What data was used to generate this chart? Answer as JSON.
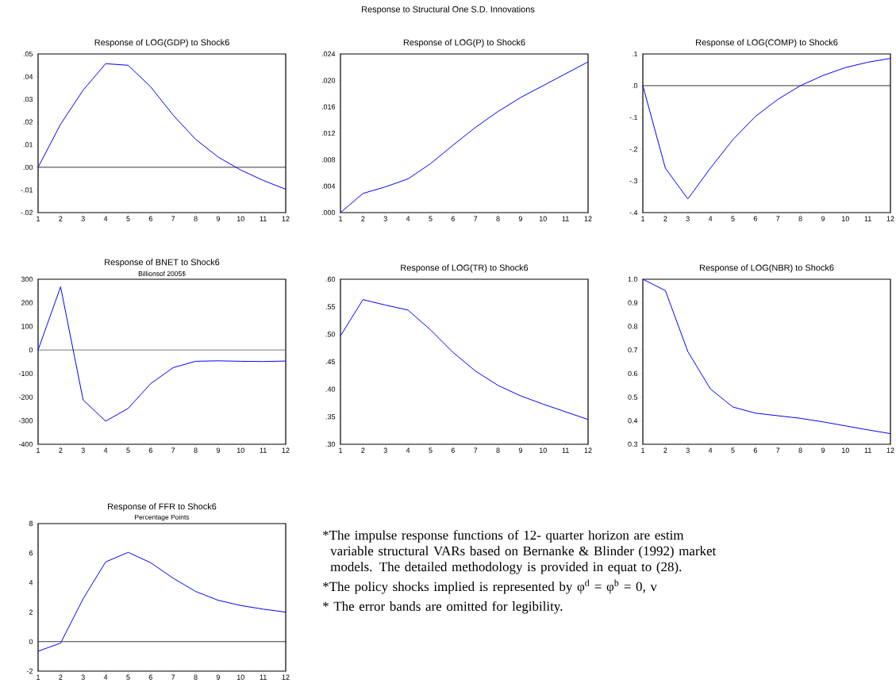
{
  "chart_data": [
    {
      "type": "line",
      "title": "Response of LOG(GDP) to Shock6",
      "x": [
        1,
        2,
        3,
        4,
        5,
        6,
        7,
        8,
        9,
        10,
        11,
        12
      ],
      "xlim": [
        1,
        12
      ],
      "xticks": [
        1,
        2,
        3,
        4,
        5,
        6,
        7,
        8,
        9,
        10,
        11,
        12
      ],
      "ylim": [
        -0.02,
        0.05
      ],
      "yticks": [
        {
          "value": -0.02,
          "label": "-.02"
        },
        {
          "value": -0.01,
          "label": "-.01"
        },
        {
          "value": 0,
          "label": ".00"
        },
        {
          "value": 0.01,
          "label": ".01"
        },
        {
          "value": 0.02,
          "label": ".02"
        },
        {
          "value": 0.03,
          "label": ".03"
        },
        {
          "value": 0.04,
          "label": ".04"
        },
        {
          "value": 0.05,
          "label": ".05"
        }
      ],
      "series": [
        {
          "color": "#0000ff",
          "values": [
            0,
            0.019,
            0.034,
            0.0457,
            0.045,
            0.0355,
            0.023,
            0.0123,
            0.0045,
            -0.0012,
            -0.0058,
            -0.0097
          ]
        }
      ],
      "ref_lines": [
        {
          "axis": "y",
          "value": 0,
          "color": "#000000"
        }
      ]
    },
    {
      "type": "line",
      "title": "Response of LOG(P) to Shock6",
      "x": [
        1,
        2,
        3,
        4,
        5,
        6,
        7,
        8,
        9,
        10,
        11,
        12
      ],
      "xlim": [
        1,
        12
      ],
      "xticks": [
        1,
        2,
        3,
        4,
        5,
        6,
        7,
        8,
        9,
        10,
        11,
        12
      ],
      "ylim": [
        0,
        0.024
      ],
      "yticks": [
        {
          "value": 0,
          "label": ".000"
        },
        {
          "value": 0.004,
          "label": ".004"
        },
        {
          "value": 0.008,
          "label": ".008"
        },
        {
          "value": 0.012,
          "label": ".012"
        },
        {
          "value": 0.016,
          "label": ".016"
        },
        {
          "value": 0.02,
          "label": ".020"
        },
        {
          "value": 0.024,
          "label": ".024"
        }
      ],
      "series": [
        {
          "color": "#0000ff",
          "values": [
            0,
            0.0029,
            0.0039,
            0.0051,
            0.0074,
            0.0102,
            0.0129,
            0.0153,
            0.0174,
            0.0192,
            0.021,
            0.0228
          ]
        }
      ]
    },
    {
      "type": "line",
      "title": "Response of LOG(COMP) to Shock6",
      "x": [
        1,
        2,
        3,
        4,
        5,
        6,
        7,
        8,
        9,
        10,
        11,
        12
      ],
      "xlim": [
        1,
        12
      ],
      "xticks": [
        1,
        2,
        3,
        4,
        5,
        6,
        7,
        8,
        9,
        10,
        11,
        12
      ],
      "ylim": [
        -0.4,
        0.1
      ],
      "yticks": [
        {
          "value": -0.4,
          "label": "-.4"
        },
        {
          "value": -0.3,
          "label": "-.3"
        },
        {
          "value": -0.2,
          "label": "-.2"
        },
        {
          "value": -0.1,
          "label": "-.1"
        },
        {
          "value": 0,
          "label": ".0"
        },
        {
          "value": 0.1,
          "label": ".1"
        }
      ],
      "series": [
        {
          "color": "#0000ff",
          "values": [
            0,
            -0.26,
            -0.357,
            -0.26,
            -0.17,
            -0.097,
            -0.043,
            0,
            0.032,
            0.057,
            0.074,
            0.086
          ]
        }
      ],
      "ref_lines": [
        {
          "axis": "y",
          "value": 0,
          "color": "#000000"
        }
      ]
    },
    {
      "type": "line",
      "title": "Response of BNET to Shock6",
      "subtitle": "Billionsof 2005$",
      "x": [
        1,
        2,
        3,
        4,
        5,
        6,
        7,
        8,
        9,
        10,
        11,
        12
      ],
      "xlim": [
        1,
        12
      ],
      "xticks": [
        1,
        2,
        3,
        4,
        5,
        6,
        7,
        8,
        9,
        10,
        11,
        12
      ],
      "ylim": [
        -400,
        300
      ],
      "yticks": [
        -400,
        -300,
        -200,
        -100,
        0,
        100,
        200,
        300
      ],
      "series": [
        {
          "color": "#0000ff",
          "values": [
            0,
            268,
            -212,
            -302,
            -248,
            -143,
            -75,
            -48,
            -46,
            -48,
            -49,
            -47
          ]
        }
      ],
      "ref_lines": [
        {
          "axis": "y",
          "value": 0,
          "color": "#555555"
        }
      ]
    },
    {
      "type": "line",
      "title": "Response of LOG(TR) to Shock6",
      "x": [
        1,
        2,
        3,
        4,
        5,
        6,
        7,
        8,
        9,
        10,
        11,
        12
      ],
      "xlim": [
        1,
        12
      ],
      "xticks": [
        1,
        2,
        3,
        4,
        5,
        6,
        7,
        8,
        9,
        10,
        11,
        12
      ],
      "ylim": [
        0.3,
        0.6
      ],
      "yticks": [
        {
          "value": 0.3,
          "label": ".30"
        },
        {
          "value": 0.35,
          "label": ".35"
        },
        {
          "value": 0.4,
          "label": ".40"
        },
        {
          "value": 0.45,
          "label": ".45"
        },
        {
          "value": 0.5,
          "label": ".50"
        },
        {
          "value": 0.55,
          "label": ".55"
        },
        {
          "value": 0.6,
          "label": ".60"
        }
      ],
      "series": [
        {
          "color": "#0000ff",
          "values": [
            0.497,
            0.563,
            0.553,
            0.544,
            0.508,
            0.467,
            0.433,
            0.407,
            0.388,
            0.373,
            0.359,
            0.345
          ]
        }
      ]
    },
    {
      "type": "line",
      "title": "Response of LOG(NBR) to Shock6",
      "x": [
        1,
        2,
        3,
        4,
        5,
        6,
        7,
        8,
        9,
        10,
        11,
        12
      ],
      "xlim": [
        1,
        12
      ],
      "xticks": [
        1,
        2,
        3,
        4,
        5,
        6,
        7,
        8,
        9,
        10,
        11,
        12
      ],
      "ylim": [
        0.3,
        1.0
      ],
      "yticks": [
        {
          "value": 0.3,
          "label": "0.3"
        },
        {
          "value": 0.4,
          "label": "0.4"
        },
        {
          "value": 0.5,
          "label": "0.5"
        },
        {
          "value": 0.6,
          "label": "0.6"
        },
        {
          "value": 0.7,
          "label": "0.7"
        },
        {
          "value": 0.8,
          "label": "0.8"
        },
        {
          "value": 0.9,
          "label": "0.9"
        },
        {
          "value": 1.0,
          "label": "1.0"
        }
      ],
      "series": [
        {
          "color": "#0000ff",
          "values": [
            1.0,
            0.952,
            0.693,
            0.535,
            0.458,
            0.432,
            0.421,
            0.41,
            0.395,
            0.378,
            0.361,
            0.345
          ]
        }
      ]
    },
    {
      "type": "line",
      "title": "Response of FFR to Shock6",
      "subtitle": "Percentage Points",
      "x": [
        1,
        2,
        3,
        4,
        5,
        6,
        7,
        8,
        9,
        10,
        11,
        12
      ],
      "xlim": [
        1,
        12
      ],
      "xticks": [
        1,
        2,
        3,
        4,
        5,
        6,
        7,
        8,
        9,
        10,
        11,
        12
      ],
      "ylim": [
        -2,
        8
      ],
      "yticks": [
        -2,
        0,
        2,
        4,
        6,
        8
      ],
      "series": [
        {
          "color": "#0000ff",
          "values": [
            -0.65,
            -0.1,
            2.9,
            5.4,
            6.05,
            5.35,
            4.3,
            3.4,
            2.8,
            2.45,
            2.2,
            2.0
          ]
        }
      ],
      "ref_lines": [
        {
          "axis": "y",
          "value": 0,
          "color": "#000000"
        }
      ]
    },
    {
      "type": "other",
      "title": "Response to Structural One S.D. Innovations",
      "annotations": [
        "*The impulse response functions of 12- quarter horizon are estim variable structural VARs based on Bernanke & Blinder (1992) market models. The detailed methodology is provided in equat to (28).",
        "*The policy shocks implied is represented by φ$^{d}$ = φ$^{b}$ = 0, v",
        "* The error bands are omitted for legibility."
      ]
    }
  ]
}
